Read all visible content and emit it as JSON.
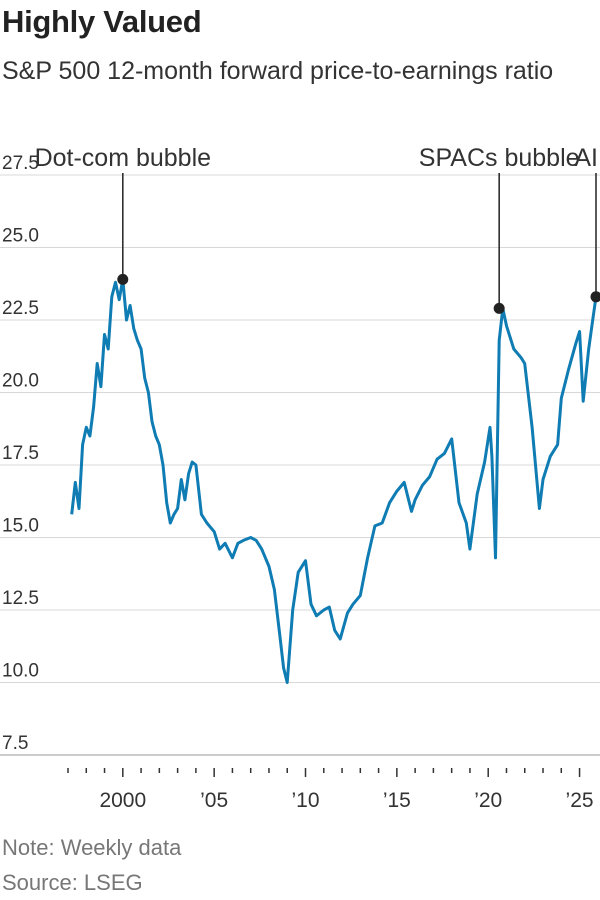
{
  "chart_data": {
    "type": "line",
    "title": "Highly Valued",
    "subtitle": "S&P 500 12-month forward price-to-earnings ratio",
    "xlabel": "",
    "ylabel": "",
    "xlim": [
      1997.0,
      2025.9
    ],
    "ylim": [
      7.5,
      27.5
    ],
    "y_ticks": [
      7.5,
      10.0,
      12.5,
      15.0,
      17.5,
      20.0,
      22.5,
      25.0,
      27.5
    ],
    "y_tick_labels": [
      "7.5",
      "10.0",
      "12.5",
      "15.0",
      "17.5",
      "20.0",
      "22.5",
      "25.0",
      "27.5"
    ],
    "x_ticks": [
      2000,
      2005,
      2010,
      2015,
      2020,
      2025
    ],
    "x_tick_labels": [
      "2000",
      "’05",
      "’10",
      "’15",
      "’20",
      "’25"
    ],
    "grid": "horizontal",
    "line_color": "#0f7cb3",
    "annotations": [
      {
        "label": "Dot-com bubble",
        "x": 2000.0,
        "y": 23.9
      },
      {
        "label": "SPACs bubble",
        "x": 2020.6,
        "y": 22.9
      },
      {
        "label": "AI",
        "x": 2025.9,
        "y": 23.3
      }
    ],
    "series": [
      {
        "x": [
          1997.2,
          1997.4,
          1997.6,
          1997.8,
          1998.0,
          1998.2,
          1998.4,
          1998.6,
          1998.8,
          1999.0,
          1999.2,
          1999.4,
          1999.6,
          1999.8,
          2000.0,
          2000.2,
          2000.4,
          2000.6,
          2000.8,
          2001.0,
          2001.2,
          2001.4,
          2001.6,
          2001.8,
          2002.0,
          2002.2,
          2002.4,
          2002.6,
          2002.8,
          2003.0,
          2003.2,
          2003.4,
          2003.6,
          2003.8,
          2004.0,
          2004.3,
          2004.6,
          2005.0,
          2005.3,
          2005.6,
          2006.0,
          2006.3,
          2006.6,
          2007.0,
          2007.3,
          2007.6,
          2008.0,
          2008.3,
          2008.6,
          2008.8,
          2009.0,
          2009.3,
          2009.6,
          2010.0,
          2010.3,
          2010.6,
          2011.0,
          2011.3,
          2011.6,
          2011.9,
          2012.3,
          2012.6,
          2013.0,
          2013.4,
          2013.8,
          2014.2,
          2014.6,
          2015.0,
          2015.4,
          2015.8,
          2016.0,
          2016.4,
          2016.8,
          2017.2,
          2017.6,
          2018.0,
          2018.4,
          2018.8,
          2019.0,
          2019.4,
          2019.8,
          2020.1,
          2020.2,
          2020.4,
          2020.6,
          2020.8,
          2021.0,
          2021.4,
          2021.8,
          2022.0,
          2022.4,
          2022.8,
          2023.0,
          2023.4,
          2023.8,
          2024.0,
          2024.4,
          2024.8,
          2025.0,
          2025.2,
          2025.5,
          2025.7,
          2025.9
        ],
        "values": [
          15.8,
          16.9,
          16.0,
          18.2,
          18.8,
          18.5,
          19.5,
          21.0,
          20.2,
          22.0,
          21.5,
          23.3,
          23.8,
          23.2,
          23.9,
          22.5,
          23.0,
          22.2,
          21.8,
          21.5,
          20.5,
          20.0,
          19.0,
          18.5,
          18.2,
          17.5,
          16.2,
          15.5,
          15.8,
          16.0,
          17.0,
          16.3,
          17.2,
          17.6,
          17.5,
          15.8,
          15.5,
          15.2,
          14.6,
          14.8,
          14.3,
          14.8,
          14.9,
          15.0,
          14.9,
          14.6,
          14.0,
          13.2,
          11.6,
          10.5,
          10.0,
          12.5,
          13.8,
          14.2,
          12.7,
          12.3,
          12.5,
          12.6,
          11.8,
          11.5,
          12.4,
          12.7,
          13.0,
          14.3,
          15.4,
          15.5,
          16.2,
          16.6,
          16.9,
          15.9,
          16.3,
          16.8,
          17.1,
          17.7,
          17.9,
          18.4,
          16.2,
          15.5,
          14.6,
          16.5,
          17.6,
          18.8,
          17.8,
          14.3,
          21.8,
          22.9,
          22.3,
          21.5,
          21.2,
          21.0,
          18.8,
          16.0,
          17.0,
          17.8,
          18.2,
          19.8,
          20.8,
          21.7,
          22.1,
          19.7,
          21.5,
          22.4,
          23.3
        ]
      }
    ]
  },
  "notes": {
    "note": "Note: Weekly data",
    "source": "Source: LSEG"
  }
}
